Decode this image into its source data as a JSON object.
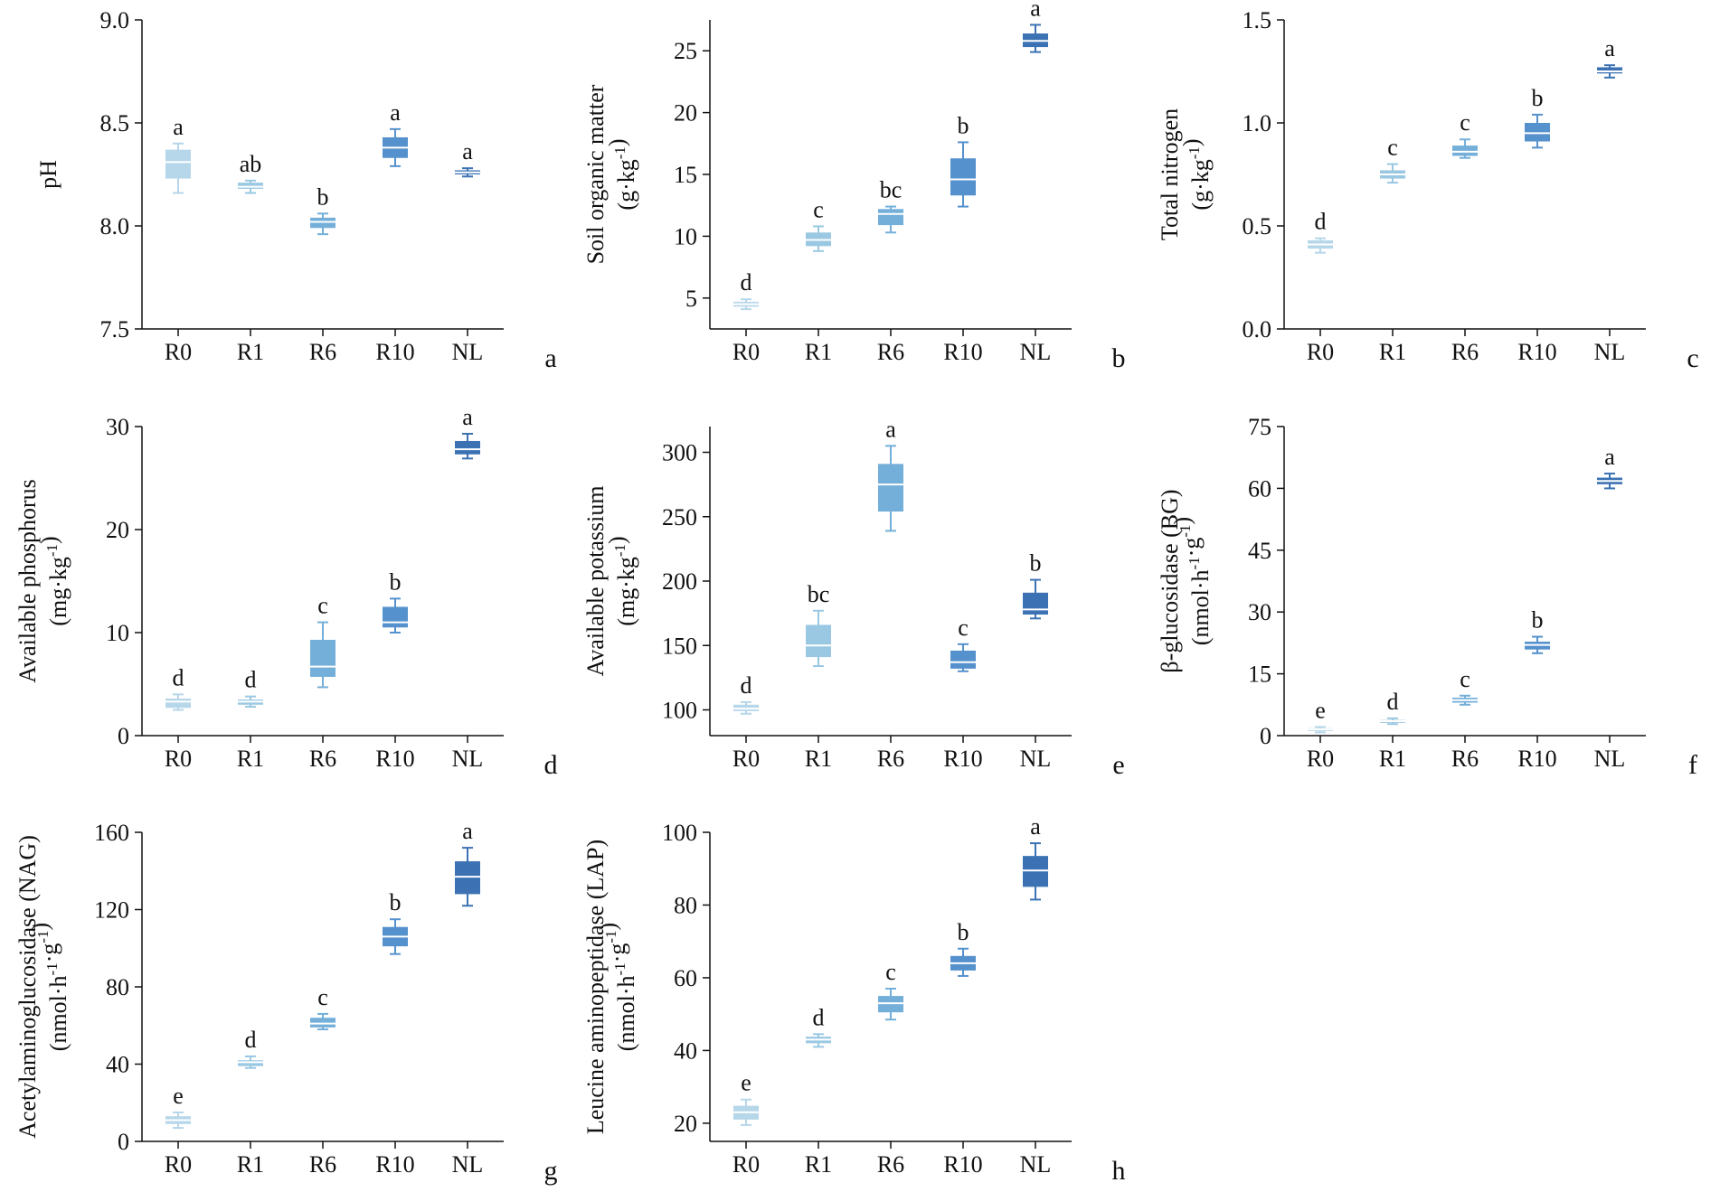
{
  "colors": {
    "R0": "#b6d6ea",
    "R1": "#9ac8e2",
    "R6": "#74afd9",
    "R10": "#5591cc",
    "NL": "#3c72b3",
    "median": "#ffffff",
    "axis": "#111111"
  },
  "chart_data": [
    {
      "id": "a",
      "type": "box",
      "panel_label": "a",
      "ylabel_lines": [
        "pH"
      ],
      "ylim": [
        7.5,
        9.0
      ],
      "yticks": [
        "7.5",
        "8.0",
        "8.5",
        "9.0"
      ],
      "categories": [
        "R0",
        "R1",
        "R6",
        "R10",
        "NL"
      ],
      "boxes": [
        {
          "min": 8.16,
          "q1": 8.23,
          "median": 8.31,
          "q3": 8.37,
          "max": 8.4,
          "sig": "a"
        },
        {
          "min": 8.16,
          "q1": 8.18,
          "median": 8.19,
          "q3": 8.21,
          "max": 8.22,
          "sig": "ab"
        },
        {
          "min": 7.96,
          "q1": 7.99,
          "median": 8.02,
          "q3": 8.04,
          "max": 8.06,
          "sig": "b"
        },
        {
          "min": 8.29,
          "q1": 8.33,
          "median": 8.38,
          "q3": 8.43,
          "max": 8.47,
          "sig": "a"
        },
        {
          "min": 8.24,
          "q1": 8.25,
          "median": 8.26,
          "q3": 8.27,
          "max": 8.28,
          "sig": "a"
        }
      ]
    },
    {
      "id": "b",
      "type": "box",
      "panel_label": "b",
      "ylabel_lines": [
        "Soil organic matter",
        "(g·kg-1)"
      ],
      "ylim": [
        2.5,
        27.5
      ],
      "yticks": [
        "5",
        "10",
        "15",
        "20",
        "25"
      ],
      "categories": [
        "R0",
        "R1",
        "R6",
        "R10",
        "NL"
      ],
      "boxes": [
        {
          "min": 4.1,
          "q1": 4.3,
          "median": 4.5,
          "q3": 4.7,
          "max": 4.9,
          "sig": "d"
        },
        {
          "min": 8.8,
          "q1": 9.2,
          "median": 9.7,
          "q3": 10.3,
          "max": 10.8,
          "sig": "c"
        },
        {
          "min": 10.3,
          "q1": 10.9,
          "median": 11.8,
          "q3": 12.2,
          "max": 12.4,
          "sig": "bc"
        },
        {
          "min": 12.4,
          "q1": 13.3,
          "median": 14.6,
          "q3": 16.3,
          "max": 17.6,
          "sig": "b"
        },
        {
          "min": 24.9,
          "q1": 25.3,
          "median": 25.8,
          "q3": 26.4,
          "max": 27.1,
          "sig": "a"
        }
      ]
    },
    {
      "id": "c",
      "type": "box",
      "panel_label": "c",
      "ylabel_lines": [
        "Total nitrogen",
        "(g·kg-1)"
      ],
      "ylim": [
        0.0,
        1.5
      ],
      "yticks": [
        "0.0",
        "0.5",
        "1.0",
        "1.5"
      ],
      "categories": [
        "R0",
        "R1",
        "R6",
        "R10",
        "NL"
      ],
      "boxes": [
        {
          "min": 0.37,
          "q1": 0.39,
          "median": 0.41,
          "q3": 0.43,
          "max": 0.44,
          "sig": "d"
        },
        {
          "min": 0.71,
          "q1": 0.73,
          "median": 0.75,
          "q3": 0.77,
          "max": 0.8,
          "sig": "c"
        },
        {
          "min": 0.83,
          "q1": 0.84,
          "median": 0.86,
          "q3": 0.89,
          "max": 0.92,
          "sig": "c"
        },
        {
          "min": 0.88,
          "q1": 0.91,
          "median": 0.95,
          "q3": 1.0,
          "max": 1.04,
          "sig": "b"
        },
        {
          "min": 1.22,
          "q1": 1.24,
          "median": 1.25,
          "q3": 1.27,
          "max": 1.28,
          "sig": "a"
        }
      ]
    },
    {
      "id": "d",
      "type": "box",
      "panel_label": "d",
      "ylabel_lines": [
        "Available phosphorus",
        "(mg·kg-1)"
      ],
      "ylim": [
        0,
        30
      ],
      "yticks": [
        "0",
        "10",
        "20",
        "30"
      ],
      "categories": [
        "R0",
        "R1",
        "R6",
        "R10",
        "NL"
      ],
      "boxes": [
        {
          "min": 2.5,
          "q1": 2.7,
          "median": 3.3,
          "q3": 3.6,
          "max": 4.0,
          "sig": "d"
        },
        {
          "min": 2.8,
          "q1": 3.0,
          "median": 3.3,
          "q3": 3.5,
          "max": 3.8,
          "sig": "d"
        },
        {
          "min": 4.7,
          "q1": 5.7,
          "median": 6.7,
          "q3": 9.3,
          "max": 11.0,
          "sig": "c"
        },
        {
          "min": 10.0,
          "q1": 10.5,
          "median": 11.0,
          "q3": 12.5,
          "max": 13.3,
          "sig": "b"
        },
        {
          "min": 26.9,
          "q1": 27.3,
          "median": 27.8,
          "q3": 28.6,
          "max": 29.3,
          "sig": "a"
        }
      ]
    },
    {
      "id": "e",
      "type": "box",
      "panel_label": "e",
      "ylabel_lines": [
        "Available potassium",
        "(mg·kg-1)"
      ],
      "ylim": [
        80,
        320
      ],
      "yticks": [
        "100",
        "150",
        "200",
        "250",
        "300"
      ],
      "categories": [
        "R0",
        "R1",
        "R6",
        "R10",
        "NL"
      ],
      "boxes": [
        {
          "min": 97,
          "q1": 99,
          "median": 101,
          "q3": 104,
          "max": 106,
          "sig": "d"
        },
        {
          "min": 134,
          "q1": 141,
          "median": 150,
          "q3": 166,
          "max": 177,
          "sig": "bc"
        },
        {
          "min": 239,
          "q1": 254,
          "median": 275,
          "q3": 291,
          "max": 305,
          "sig": "a"
        },
        {
          "min": 130,
          "q1": 132,
          "median": 137,
          "q3": 146,
          "max": 151,
          "sig": "c"
        },
        {
          "min": 171,
          "q1": 174,
          "median": 178,
          "q3": 191,
          "max": 201,
          "sig": "b"
        }
      ]
    },
    {
      "id": "f",
      "type": "box",
      "panel_label": "f",
      "ylabel_lines": [
        "β-glucosidase (BG)",
        "(nmol·h-1·g-1)"
      ],
      "ylim": [
        0,
        75
      ],
      "yticks": [
        "0",
        "15",
        "30",
        "45",
        "60",
        "75"
      ],
      "categories": [
        "R0",
        "R1",
        "R6",
        "R10",
        "NL"
      ],
      "boxes": [
        {
          "min": 0.8,
          "q1": 1.1,
          "median": 1.5,
          "q3": 1.8,
          "max": 2.1,
          "sig": "e"
        },
        {
          "min": 2.8,
          "q1": 3.1,
          "median": 3.5,
          "q3": 3.8,
          "max": 4.2,
          "sig": "d"
        },
        {
          "min": 7.5,
          "q1": 8.0,
          "median": 8.6,
          "q3": 9.2,
          "max": 9.7,
          "sig": "c"
        },
        {
          "min": 20.0,
          "q1": 20.9,
          "median": 22.0,
          "q3": 22.8,
          "max": 24.0,
          "sig": "b"
        },
        {
          "min": 60.0,
          "q1": 61.0,
          "median": 61.8,
          "q3": 62.6,
          "max": 63.6,
          "sig": "a"
        }
      ]
    },
    {
      "id": "g",
      "type": "box",
      "panel_label": "g",
      "ylabel_lines": [
        "Acetylaminoglucosidase (NAG)",
        "(nmol·h-1·g-1)"
      ],
      "ylim": [
        0,
        160
      ],
      "yticks": [
        "0",
        "40",
        "80",
        "120",
        "160"
      ],
      "categories": [
        "R0",
        "R1",
        "R6",
        "R10",
        "NL"
      ],
      "boxes": [
        {
          "min": 7,
          "q1": 9,
          "median": 11,
          "q3": 13,
          "max": 15,
          "sig": "e"
        },
        {
          "min": 38,
          "q1": 39,
          "median": 41,
          "q3": 42,
          "max": 44,
          "sig": "d"
        },
        {
          "min": 58,
          "q1": 59,
          "median": 61,
          "q3": 64,
          "max": 66,
          "sig": "c"
        },
        {
          "min": 97,
          "q1": 101,
          "median": 106,
          "q3": 111,
          "max": 115,
          "sig": "b"
        },
        {
          "min": 122,
          "q1": 128,
          "median": 137,
          "q3": 145,
          "max": 152,
          "sig": "a"
        }
      ]
    },
    {
      "id": "h",
      "type": "box",
      "panel_label": "h",
      "ylabel_lines": [
        "Leucine aminopeptidase (LAP)",
        "(nmol·h-1·g-1)"
      ],
      "ylim": [
        15,
        100
      ],
      "yticks": [
        "20",
        "40",
        "60",
        "80",
        "100"
      ],
      "categories": [
        "R0",
        "R1",
        "R6",
        "R10",
        "NL"
      ],
      "boxes": [
        {
          "min": 19.5,
          "q1": 21.0,
          "median": 23.0,
          "q3": 24.8,
          "max": 26.5,
          "sig": "e"
        },
        {
          "min": 41.0,
          "q1": 42.0,
          "median": 43.0,
          "q3": 43.8,
          "max": 44.5,
          "sig": "d"
        },
        {
          "min": 48.5,
          "q1": 50.5,
          "median": 53.0,
          "q3": 55.0,
          "max": 57.0,
          "sig": "c"
        },
        {
          "min": 60.5,
          "q1": 62.0,
          "median": 64.0,
          "q3": 66.0,
          "max": 68.0,
          "sig": "b"
        },
        {
          "min": 81.5,
          "q1": 85.0,
          "median": 89.5,
          "q3": 93.5,
          "max": 97.0,
          "sig": "a"
        }
      ]
    }
  ]
}
